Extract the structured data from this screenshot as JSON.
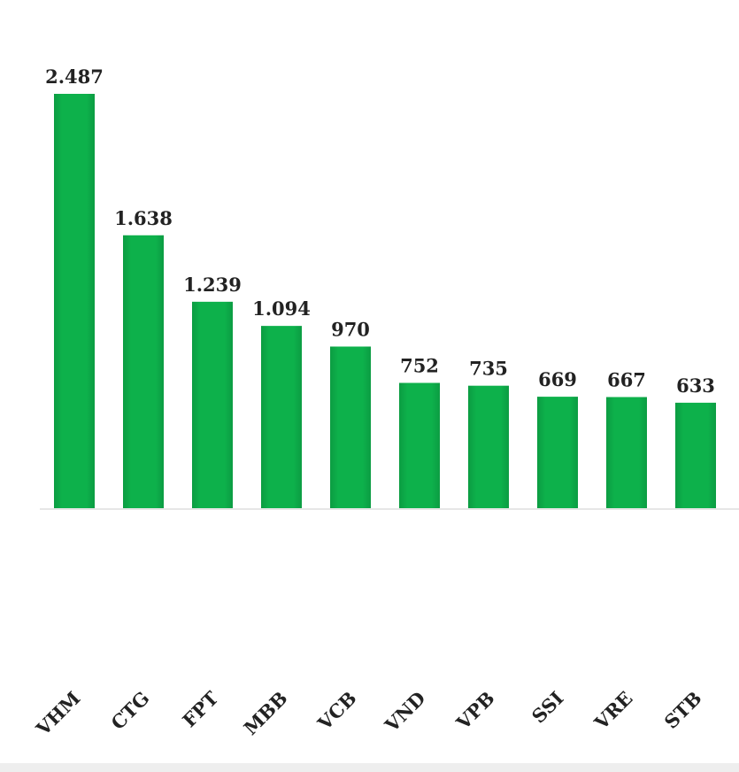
{
  "chart_data": {
    "type": "bar",
    "categories": [
      "VHM",
      "CTG",
      "FPT",
      "MBB",
      "VCB",
      "VND",
      "VPB",
      "SSI",
      "VRE",
      "STB"
    ],
    "values": [
      2487,
      1638,
      1239,
      1094,
      970,
      752,
      735,
      669,
      667,
      633
    ],
    "value_labels": [
      "2.487",
      "1.638",
      "1.239",
      "1.094",
      "970",
      "752",
      "735",
      "669",
      "667",
      "633"
    ],
    "color": "#0db14b"
  }
}
